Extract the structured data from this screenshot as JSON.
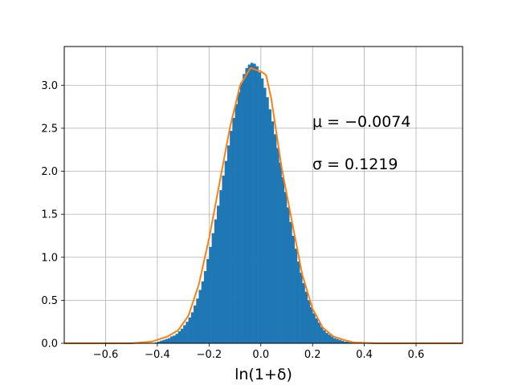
{
  "chart_data": {
    "type": "bar",
    "xlabel": "ln(1+δ)",
    "ylabel": "",
    "title": "",
    "xlim": [
      -0.76,
      0.78
    ],
    "ylim": [
      0,
      3.45
    ],
    "grid": true,
    "x_ticks": [
      -0.6,
      -0.4,
      -0.2,
      0.0,
      0.2,
      0.4,
      0.6
    ],
    "x_tick_labels": [
      "−0.6",
      "−0.4",
      "−0.2",
      "0.0",
      "0.2",
      "0.4",
      "0.6"
    ],
    "y_ticks": [
      0.0,
      0.5,
      1.0,
      1.5,
      2.0,
      2.5,
      3.0
    ],
    "y_tick_labels": [
      "0.0",
      "0.5",
      "1.0",
      "1.5",
      "2.0",
      "2.5",
      "3.0"
    ],
    "annotations": [
      "μ = −0.0074",
      "σ = 0.1219"
    ],
    "colors": {
      "histogram": "#1f77b4",
      "fit_line": "#ff7f0e",
      "grid": "#b0b0b0"
    },
    "series": [
      {
        "type": "histogram",
        "bin_width": 0.01,
        "bins": [
          {
            "x": -0.42,
            "y": 0.0
          },
          {
            "x": -0.41,
            "y": 0.01
          },
          {
            "x": -0.4,
            "y": 0.02
          },
          {
            "x": -0.39,
            "y": 0.03
          },
          {
            "x": -0.38,
            "y": 0.04
          },
          {
            "x": -0.37,
            "y": 0.05
          },
          {
            "x": -0.36,
            "y": 0.06
          },
          {
            "x": -0.35,
            "y": 0.08
          },
          {
            "x": -0.34,
            "y": 0.09
          },
          {
            "x": -0.33,
            "y": 0.11
          },
          {
            "x": -0.32,
            "y": 0.14
          },
          {
            "x": -0.31,
            "y": 0.17
          },
          {
            "x": -0.3,
            "y": 0.21
          },
          {
            "x": -0.29,
            "y": 0.25
          },
          {
            "x": -0.28,
            "y": 0.3
          },
          {
            "x": -0.27,
            "y": 0.36
          },
          {
            "x": -0.26,
            "y": 0.44
          },
          {
            "x": -0.25,
            "y": 0.52
          },
          {
            "x": -0.24,
            "y": 0.62
          },
          {
            "x": -0.23,
            "y": 0.72
          },
          {
            "x": -0.22,
            "y": 0.84
          },
          {
            "x": -0.21,
            "y": 0.98
          },
          {
            "x": -0.2,
            "y": 1.12
          },
          {
            "x": -0.19,
            "y": 1.28
          },
          {
            "x": -0.18,
            "y": 1.44
          },
          {
            "x": -0.17,
            "y": 1.6
          },
          {
            "x": -0.16,
            "y": 1.78
          },
          {
            "x": -0.15,
            "y": 1.95
          },
          {
            "x": -0.14,
            "y": 2.12
          },
          {
            "x": -0.13,
            "y": 2.3
          },
          {
            "x": -0.12,
            "y": 2.47
          },
          {
            "x": -0.11,
            "y": 2.62
          },
          {
            "x": -0.1,
            "y": 2.78
          },
          {
            "x": -0.09,
            "y": 2.92
          },
          {
            "x": -0.08,
            "y": 3.03
          },
          {
            "x": -0.07,
            "y": 3.13
          },
          {
            "x": -0.06,
            "y": 3.2
          },
          {
            "x": -0.05,
            "y": 3.24
          },
          {
            "x": -0.04,
            "y": 3.26
          },
          {
            "x": -0.03,
            "y": 3.25
          },
          {
            "x": -0.02,
            "y": 3.22
          },
          {
            "x": -0.01,
            "y": 3.15
          },
          {
            "x": 0.0,
            "y": 3.08
          },
          {
            "x": 0.01,
            "y": 2.97
          },
          {
            "x": 0.02,
            "y": 2.86
          },
          {
            "x": 0.03,
            "y": 2.72
          },
          {
            "x": 0.04,
            "y": 2.58
          },
          {
            "x": 0.05,
            "y": 2.43
          },
          {
            "x": 0.06,
            "y": 2.27
          },
          {
            "x": 0.07,
            "y": 2.1
          },
          {
            "x": 0.08,
            "y": 1.93
          },
          {
            "x": 0.09,
            "y": 1.76
          },
          {
            "x": 0.1,
            "y": 1.58
          },
          {
            "x": 0.11,
            "y": 1.41
          },
          {
            "x": 0.12,
            "y": 1.25
          },
          {
            "x": 0.13,
            "y": 1.1
          },
          {
            "x": 0.14,
            "y": 0.95
          },
          {
            "x": 0.15,
            "y": 0.82
          },
          {
            "x": 0.16,
            "y": 0.7
          },
          {
            "x": 0.17,
            "y": 0.6
          },
          {
            "x": 0.18,
            "y": 0.5
          },
          {
            "x": 0.19,
            "y": 0.42
          },
          {
            "x": 0.2,
            "y": 0.35
          },
          {
            "x": 0.21,
            "y": 0.29
          },
          {
            "x": 0.22,
            "y": 0.24
          },
          {
            "x": 0.23,
            "y": 0.19
          },
          {
            "x": 0.24,
            "y": 0.15
          },
          {
            "x": 0.25,
            "y": 0.12
          },
          {
            "x": 0.26,
            "y": 0.1
          },
          {
            "x": 0.27,
            "y": 0.08
          },
          {
            "x": 0.28,
            "y": 0.06
          },
          {
            "x": 0.29,
            "y": 0.05
          },
          {
            "x": 0.3,
            "y": 0.04
          },
          {
            "x": 0.31,
            "y": 0.03
          },
          {
            "x": 0.32,
            "y": 0.02
          },
          {
            "x": 0.33,
            "y": 0.02
          },
          {
            "x": 0.34,
            "y": 0.01
          },
          {
            "x": 0.35,
            "y": 0.01
          },
          {
            "x": 0.36,
            "y": 0.0
          }
        ]
      },
      {
        "type": "line",
        "points": [
          {
            "x": -0.76,
            "y": 0.0
          },
          {
            "x": -0.6,
            "y": 0.0
          },
          {
            "x": -0.5,
            "y": 0.0
          },
          {
            "x": -0.42,
            "y": 0.02
          },
          {
            "x": -0.36,
            "y": 0.08
          },
          {
            "x": -0.32,
            "y": 0.15
          },
          {
            "x": -0.28,
            "y": 0.32
          },
          {
            "x": -0.24,
            "y": 0.68
          },
          {
            "x": -0.2,
            "y": 1.22
          },
          {
            "x": -0.16,
            "y": 1.86
          },
          {
            "x": -0.12,
            "y": 2.5
          },
          {
            "x": -0.08,
            "y": 3.0
          },
          {
            "x": -0.04,
            "y": 3.2
          },
          {
            "x": 0.0,
            "y": 3.16
          },
          {
            "x": 0.02,
            "y": 3.12
          },
          {
            "x": 0.04,
            "y": 2.85
          },
          {
            "x": 0.08,
            "y": 2.05
          },
          {
            "x": 0.12,
            "y": 1.42
          },
          {
            "x": 0.16,
            "y": 0.8
          },
          {
            "x": 0.2,
            "y": 0.4
          },
          {
            "x": 0.24,
            "y": 0.18
          },
          {
            "x": 0.28,
            "y": 0.08
          },
          {
            "x": 0.32,
            "y": 0.04
          },
          {
            "x": 0.36,
            "y": 0.01
          },
          {
            "x": 0.44,
            "y": 0.0
          },
          {
            "x": 0.6,
            "y": 0.0
          },
          {
            "x": 0.78,
            "y": 0.0
          }
        ]
      }
    ]
  }
}
